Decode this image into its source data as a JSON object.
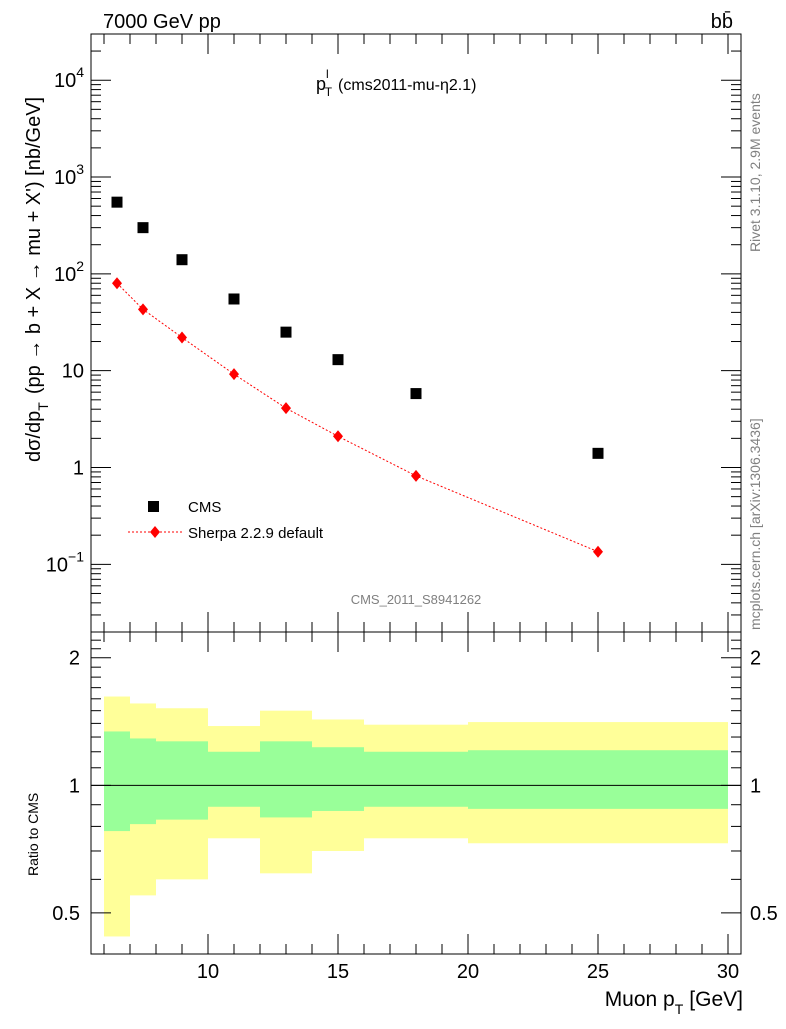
{
  "header": {
    "energy_label": "7000 GeV pp",
    "process_label": "bb̄"
  },
  "side": {
    "rivet_label": "Rivet 3.1.10,  2.9M events",
    "mcplots_label": "mcplots.cern.ch [arXiv:1306.3436]"
  },
  "chart_data": [
    {
      "type": "scatter",
      "title_main": "p",
      "title_sup": "l",
      "title_sub": "T",
      "title_rest": "(cms2011-mu-η2.1)",
      "ylabel_main": "dσ/dp",
      "ylabel_sub": "T",
      "ylabel_rest": "(pp → b + X → mu + X') [nb/GeV]",
      "yscale": "log",
      "ylim": [
        0.02,
        30000
      ],
      "xlim": [
        5.5,
        30.5
      ],
      "yticks_major": [
        {
          "value": 0.1,
          "base": "10",
          "exp": "−1"
        },
        {
          "value": 1,
          "base": "1",
          "exp": ""
        },
        {
          "value": 10,
          "base": "10",
          "exp": ""
        },
        {
          "value": 100,
          "base": "10",
          "exp": "2"
        },
        {
          "value": 1000,
          "base": "10",
          "exp": "3"
        },
        {
          "value": 10000,
          "base": "10",
          "exp": "4"
        }
      ],
      "legend_position": "lower-left",
      "watermark": "CMS_2011_S8941262",
      "series": [
        {
          "name": "CMS",
          "marker": "square",
          "color": "#000000",
          "x": [
            6.5,
            7.5,
            9,
            11,
            13,
            15,
            18,
            25
          ],
          "y": [
            550,
            300,
            140,
            55,
            25,
            13,
            5.8,
            1.4
          ]
        },
        {
          "name": "Sherpa 2.2.9 default",
          "marker": "diamond",
          "line": "dotted",
          "color": "#ff0000",
          "x": [
            6.5,
            7.5,
            9,
            11,
            13,
            15,
            18,
            25
          ],
          "y": [
            80,
            43,
            22,
            9.2,
            4.1,
            2.1,
            0.82,
            0.135
          ]
        }
      ]
    },
    {
      "type": "area",
      "ylabel": "Ratio to CMS",
      "ylim": [
        0.4,
        2.3
      ],
      "reference_line": 1,
      "yticks_major": [
        {
          "value": 0.5,
          "label": "0.5"
        },
        {
          "value": 1,
          "label": "1"
        },
        {
          "value": 2,
          "label": "2"
        }
      ],
      "xlabel_main": "Muon p",
      "xlabel_sub": "T",
      "xlabel_rest": "[GeV]",
      "xticks_major": [
        10,
        15,
        20,
        25,
        30
      ],
      "bands": {
        "bin_edges": [
          6,
          7,
          8,
          10,
          12,
          14,
          16,
          20,
          30
        ],
        "yellow_color": "#ffff99",
        "green_color": "#99ff99",
        "yellow_low": [
          0.44,
          0.55,
          0.6,
          0.75,
          0.62,
          0.7,
          0.75,
          0.73
        ],
        "yellow_high": [
          1.62,
          1.56,
          1.52,
          1.38,
          1.5,
          1.43,
          1.39,
          1.41
        ],
        "green_low": [
          0.78,
          0.81,
          0.83,
          0.89,
          0.84,
          0.87,
          0.89,
          0.88
        ],
        "green_high": [
          1.34,
          1.29,
          1.27,
          1.2,
          1.27,
          1.23,
          1.2,
          1.21
        ]
      }
    }
  ]
}
